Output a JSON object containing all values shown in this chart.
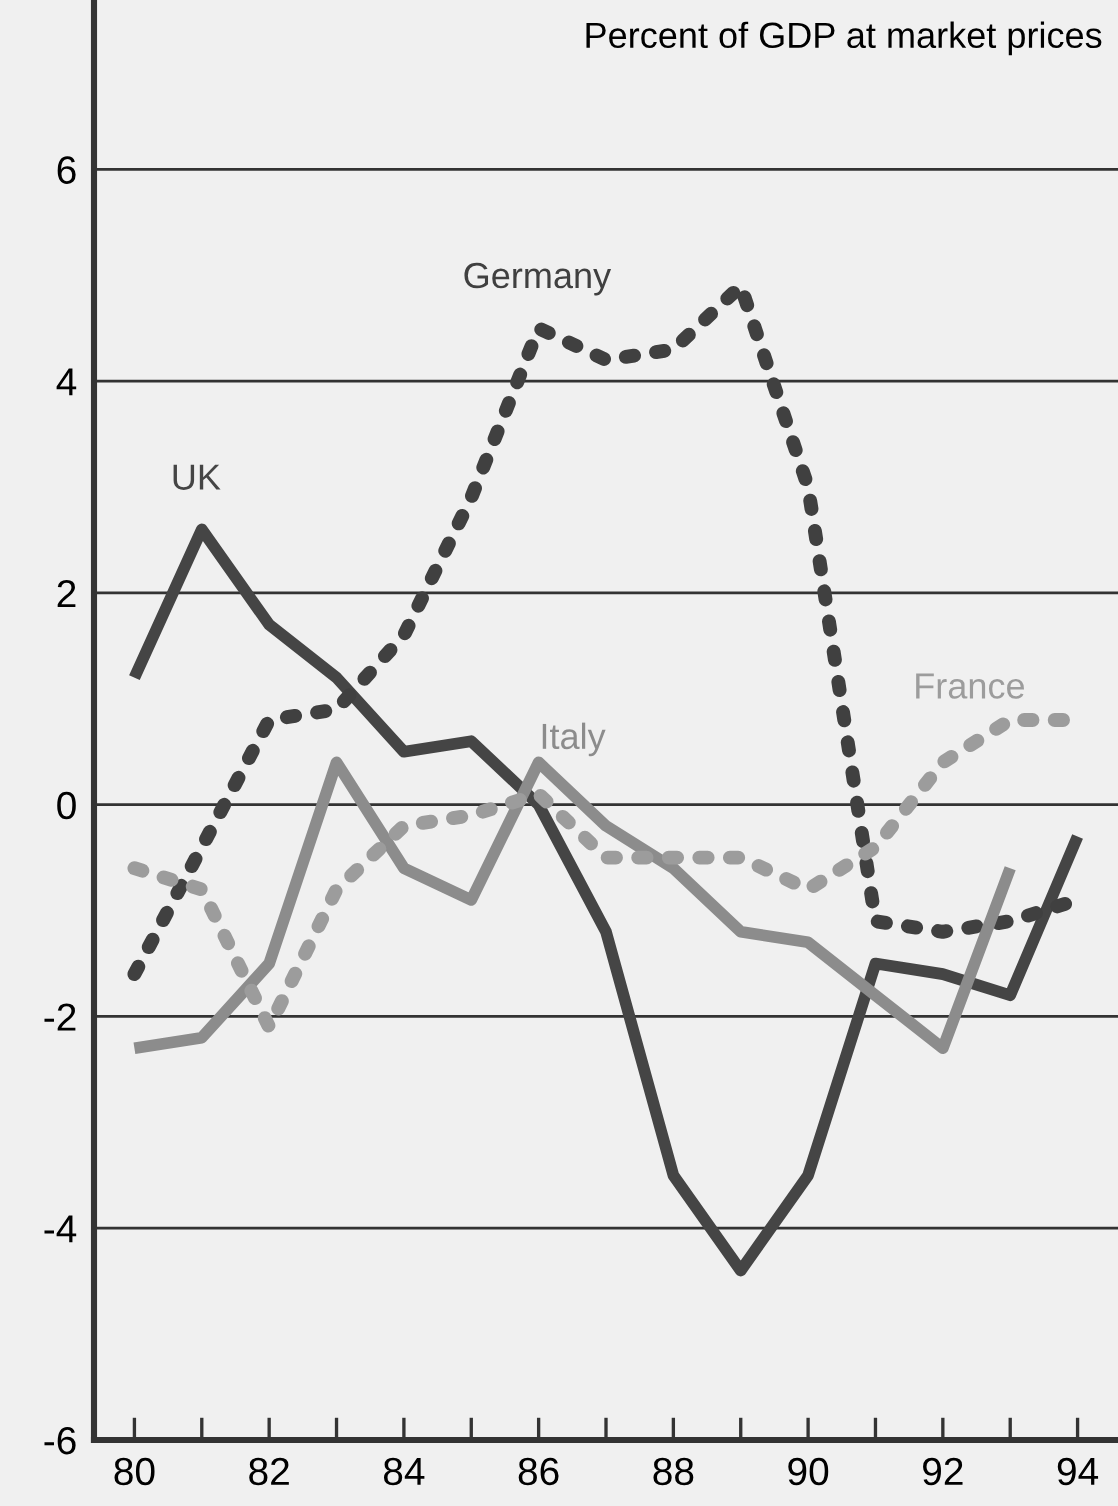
{
  "chart_data": {
    "type": "line",
    "title": "Percent of GDP at market prices",
    "x": [
      80,
      81,
      82,
      83,
      84,
      85,
      86,
      87,
      88,
      89,
      90,
      91,
      92,
      93,
      94
    ],
    "series": [
      {
        "name": "UK",
        "color": "#454545",
        "line_style": "solid",
        "values": [
          1.2,
          2.6,
          1.7,
          1.2,
          0.5,
          0.6,
          0.0,
          -1.2,
          -3.5,
          -4.4,
          -3.5,
          -1.5,
          -1.6,
          -1.8,
          -0.3
        ]
      },
      {
        "name": "Germany",
        "color": "#404040",
        "line_style": "dotted",
        "values": [
          -1.6,
          -0.4,
          0.8,
          0.9,
          1.6,
          2.9,
          4.5,
          4.2,
          4.3,
          4.9,
          3.0,
          -1.1,
          -1.2,
          -1.1,
          -0.9
        ]
      },
      {
        "name": "Italy",
        "color": "#8c8c8c",
        "line_style": "solid",
        "values": [
          -2.3,
          -2.2,
          -1.5,
          0.4,
          -0.6,
          -0.9,
          0.4,
          -0.2,
          -0.6,
          -1.2,
          -1.3,
          -1.8,
          -2.3,
          -0.6,
          null
        ]
      },
      {
        "name": "France",
        "color": "#9c9c9c",
        "line_style": "dotted",
        "values": [
          -0.6,
          -0.8,
          -2.1,
          -0.8,
          -0.2,
          -0.1,
          0.1,
          -0.5,
          -0.5,
          -0.5,
          -0.8,
          -0.4,
          0.4,
          0.8,
          0.8
        ]
      }
    ],
    "xlim": [
      79.4,
      94.6
    ],
    "ylim": [
      -6,
      7.6
    ],
    "xticks": [
      80,
      {
        "value": 81,
        "label": null
      },
      82,
      {
        "value": 83,
        "label": null
      },
      84,
      {
        "value": 85,
        "label": null
      },
      86,
      {
        "value": 87,
        "label": null
      },
      88,
      {
        "value": 89,
        "label": null
      },
      90,
      {
        "value": 91,
        "label": null
      },
      92,
      {
        "value": 93,
        "label": null
      },
      94
    ],
    "yticks": [
      -6,
      -4,
      -2,
      0,
      2,
      4,
      6
    ],
    "grid": "y",
    "marker": "none",
    "legend": false
  }
}
